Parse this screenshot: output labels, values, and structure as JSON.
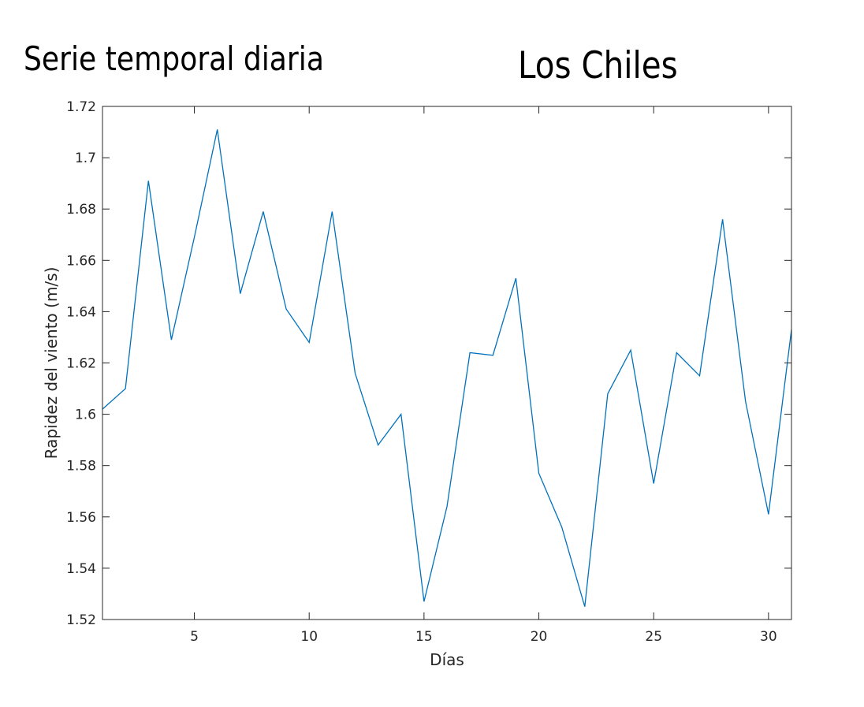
{
  "chart_data": {
    "type": "line",
    "title": "Serie temporal diaria",
    "subtitle": "Los Chiles",
    "xlabel": "Días",
    "ylabel": "Rapidez del viento (m/s)",
    "xlim": [
      1,
      31
    ],
    "ylim": [
      1.52,
      1.72
    ],
    "xticks": [
      5,
      10,
      15,
      20,
      25,
      30
    ],
    "yticks": [
      1.52,
      1.54,
      1.56,
      1.58,
      1.6,
      1.62,
      1.64,
      1.66,
      1.68,
      1.7,
      1.72
    ],
    "grid": false,
    "series": [
      {
        "color": "#0072bd",
        "x": [
          1,
          2,
          3,
          4,
          5,
          6,
          7,
          8,
          9,
          10,
          11,
          12,
          13,
          14,
          15,
          16,
          17,
          18,
          19,
          20,
          21,
          22,
          23,
          24,
          25,
          26,
          27,
          28,
          29,
          30,
          31
        ],
        "values": [
          1.602,
          1.61,
          1.691,
          1.629,
          1.669,
          1.711,
          1.647,
          1.679,
          1.641,
          1.628,
          1.679,
          1.616,
          1.588,
          1.6,
          1.527,
          1.564,
          1.624,
          1.623,
          1.653,
          1.577,
          1.556,
          1.525,
          1.608,
          1.625,
          1.573,
          1.624,
          1.615,
          1.676,
          1.605,
          1.561,
          1.633
        ]
      }
    ]
  }
}
